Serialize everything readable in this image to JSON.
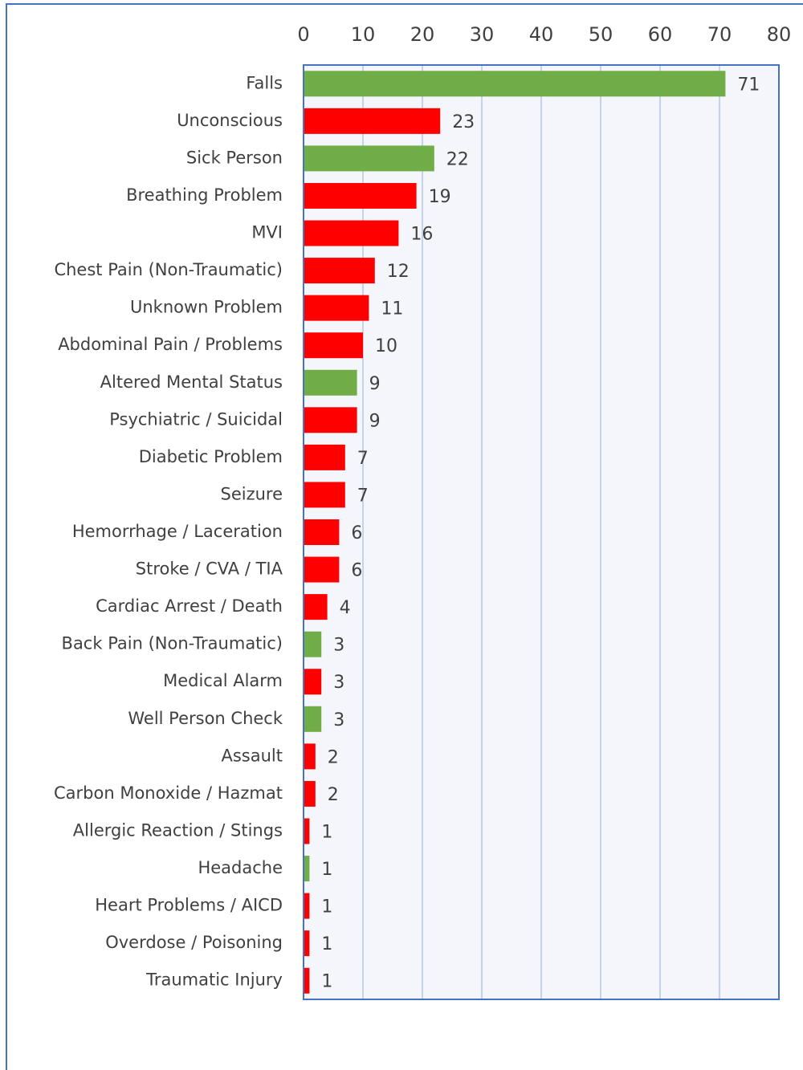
{
  "chart_data": {
    "type": "hbar",
    "categories": [
      "Falls",
      "Unconscious",
      "Sick Person",
      "Breathing Problem",
      "MVI",
      "Chest Pain (Non-Traumatic)",
      "Unknown Problem",
      "Abdominal Pain / Problems",
      "Altered Mental Status",
      "Psychiatric / Suicidal",
      "Diabetic Problem",
      "Seizure",
      "Hemorrhage / Laceration",
      "Stroke / CVA / TIA",
      "Cardiac Arrest / Death",
      "Back Pain (Non-Traumatic)",
      "Medical Alarm",
      "Well Person Check",
      "Assault",
      "Carbon Monoxide / Hazmat",
      "Allergic Reaction / Stings",
      "Headache",
      "Heart Problems / AICD",
      "Overdose / Poisoning",
      "Traumatic Injury"
    ],
    "values": [
      71,
      23,
      22,
      19,
      16,
      12,
      11,
      10,
      9,
      9,
      7,
      7,
      6,
      6,
      4,
      3,
      3,
      3,
      2,
      2,
      1,
      1,
      1,
      1,
      1
    ],
    "colors": [
      "#70ad47",
      "#ff0000",
      "#70ad47",
      "#ff0000",
      "#ff0000",
      "#ff0000",
      "#ff0000",
      "#ff0000",
      "#70ad47",
      "#ff0000",
      "#ff0000",
      "#ff0000",
      "#ff0000",
      "#ff0000",
      "#ff0000",
      "#70ad47",
      "#ff0000",
      "#70ad47",
      "#ff0000",
      "#ff0000",
      "#ff0000",
      "#70ad47",
      "#ff0000",
      "#ff0000",
      "#ff0000"
    ],
    "xlim": [
      0,
      80
    ],
    "xticks": [
      0,
      10,
      20,
      30,
      40,
      50,
      60,
      70,
      80
    ],
    "grid": true
  }
}
